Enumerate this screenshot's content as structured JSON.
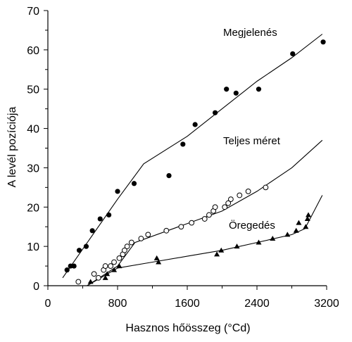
{
  "chart_data": {
    "type": "scatter",
    "xlabel": "Hasznos hőösszeg (°Cd)",
    "ylabel": "A levél pozíciója",
    "xlim": [
      0,
      3200
    ],
    "ylim": [
      0,
      70
    ],
    "x_ticks": [
      0,
      800,
      1600,
      2400,
      3200
    ],
    "y_ticks": [
      0,
      10,
      20,
      30,
      40,
      50,
      60,
      70
    ],
    "grid": false,
    "series": [
      {
        "name": "Megjelenés",
        "marker": "filled-circle",
        "points": [
          [
            220,
            4
          ],
          [
            260,
            5
          ],
          [
            300,
            5
          ],
          [
            360,
            9
          ],
          [
            440,
            10
          ],
          [
            510,
            14
          ],
          [
            600,
            17
          ],
          [
            700,
            18
          ],
          [
            800,
            24
          ],
          [
            990,
            26
          ],
          [
            1390,
            28
          ],
          [
            1550,
            36
          ],
          [
            1690,
            41
          ],
          [
            1920,
            44
          ],
          [
            2050,
            50
          ],
          [
            2160,
            49
          ],
          [
            2420,
            50
          ],
          [
            2810,
            59
          ],
          [
            3160,
            62
          ]
        ],
        "fit_line": [
          [
            170,
            2
          ],
          [
            800,
            22
          ],
          [
            1100,
            31
          ],
          [
            1600,
            38
          ],
          [
            2000,
            45
          ],
          [
            2400,
            52
          ],
          [
            2800,
            58
          ],
          [
            3150,
            64
          ]
        ]
      },
      {
        "name": "Teljes méret",
        "marker": "open-circle",
        "points": [
          [
            350,
            1
          ],
          [
            530,
            3
          ],
          [
            580,
            2
          ],
          [
            640,
            4
          ],
          [
            660,
            5
          ],
          [
            720,
            5
          ],
          [
            760,
            6
          ],
          [
            820,
            7
          ],
          [
            860,
            8
          ],
          [
            880,
            9
          ],
          [
            910,
            10
          ],
          [
            960,
            11
          ],
          [
            1070,
            12
          ],
          [
            1150,
            13
          ],
          [
            1360,
            14
          ],
          [
            1530,
            15
          ],
          [
            1650,
            16
          ],
          [
            1800,
            17
          ],
          [
            1850,
            18
          ],
          [
            1900,
            19
          ],
          [
            1920,
            20
          ],
          [
            2030,
            20
          ],
          [
            2070,
            21
          ],
          [
            2100,
            22
          ],
          [
            2200,
            23
          ],
          [
            2300,
            24
          ],
          [
            2500,
            25
          ]
        ],
        "fit_line": [
          [
            450,
            0
          ],
          [
            800,
            5
          ],
          [
            1000,
            11
          ],
          [
            1500,
            15
          ],
          [
            2000,
            19
          ],
          [
            2400,
            24
          ],
          [
            2800,
            30
          ],
          [
            3150,
            37
          ]
        ]
      },
      {
        "name": "Öregedés",
        "marker": "filled-triangle",
        "points": [
          [
            490,
            1
          ],
          [
            660,
            2
          ],
          [
            680,
            3
          ],
          [
            760,
            4
          ],
          [
            820,
            5
          ],
          [
            1250,
            7
          ],
          [
            1270,
            6
          ],
          [
            1940,
            8
          ],
          [
            1990,
            9
          ],
          [
            2170,
            10
          ],
          [
            2420,
            11
          ],
          [
            2580,
            12
          ],
          [
            2750,
            13
          ],
          [
            2850,
            14
          ],
          [
            2880,
            16
          ],
          [
            2960,
            15
          ],
          [
            2980,
            17
          ],
          [
            2990,
            18
          ]
        ],
        "fit_line": [
          [
            450,
            0
          ],
          [
            800,
            4.5
          ],
          [
            1200,
            6
          ],
          [
            1600,
            7.5
          ],
          [
            2000,
            9
          ],
          [
            2400,
            11
          ],
          [
            2800,
            13
          ],
          [
            2950,
            14.5
          ],
          [
            3150,
            23
          ]
        ]
      }
    ]
  }
}
